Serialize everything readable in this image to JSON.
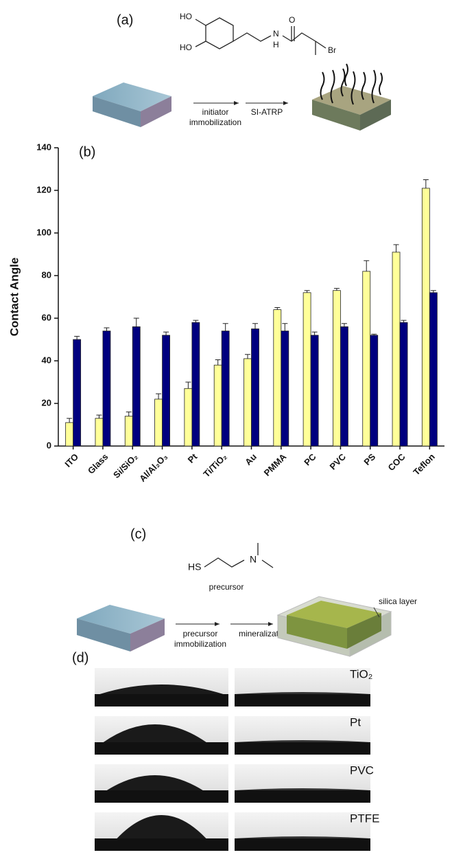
{
  "panel_a": {
    "label": "(a)",
    "atoms": [
      "HO",
      "HO",
      "O",
      "N",
      "H",
      "Br"
    ],
    "step_1": [
      "initiator",
      "immobilization"
    ],
    "step_2": "SI-ATRP"
  },
  "chart_data": {
    "type": "bar",
    "panel_label": "(b)",
    "y_label": "Contact Angle",
    "categories": [
      "ITO",
      "Glass",
      "Si/SiO₂",
      "Al/Al₂O₃",
      "Pt",
      "Ti/TiO₂",
      "Au",
      "PMMA",
      "PC",
      "PVC",
      "PS",
      "COC",
      "Teflon"
    ],
    "series": [
      {
        "color": "#ffff99",
        "values": [
          11,
          13,
          14,
          22,
          27,
          38,
          41,
          64,
          72,
          73,
          82,
          91,
          121
        ],
        "errors": [
          2,
          1.5,
          2,
          2.5,
          3,
          2.5,
          2,
          1,
          1,
          1,
          5,
          3.5,
          4
        ]
      },
      {
        "color": "#00007f",
        "values": [
          50,
          54,
          56,
          52,
          58,
          54,
          55,
          54,
          52,
          56,
          52,
          58,
          72
        ],
        "errors": [
          1.5,
          1.5,
          4,
          1.5,
          1,
          3.5,
          2.5,
          3.5,
          1.5,
          1.5,
          0.5,
          1,
          1
        ]
      }
    ],
    "ylim": [
      0,
      140
    ],
    "yticks": [
      0,
      20,
      40,
      60,
      80,
      100,
      120,
      140
    ]
  },
  "panel_c": {
    "label": "(c)",
    "atoms": [
      "HS",
      "N"
    ],
    "caption": "precursor",
    "step_1": [
      "precursor",
      "immobilization"
    ],
    "step_2": "mineralization",
    "layer": "silica layer"
  },
  "panel_d": {
    "label": "(d)",
    "samples": [
      "TiO₂",
      "Pt",
      "PVC",
      "PTFE"
    ]
  }
}
